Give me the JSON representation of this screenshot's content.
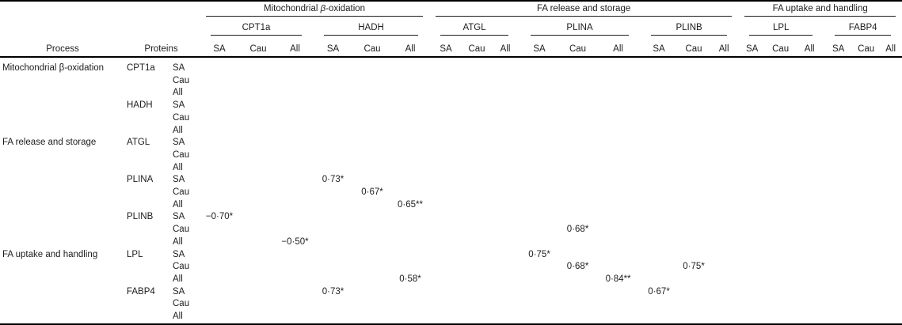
{
  "colors": {
    "background": "#ffffff",
    "text": "#1d1d1d",
    "rule": "#000000"
  },
  "table": {
    "header": {
      "process_label": "Process",
      "proteins_label": "Proteins",
      "subcolumns": [
        "SA",
        "Cau",
        "All"
      ],
      "groups": [
        {
          "label": "Mitochondrial β-oxidation",
          "proteins": [
            "CPT1a",
            "HADH"
          ]
        },
        {
          "label": "FA release and storage",
          "proteins": [
            "ATGL",
            "PLINA",
            "PLINB"
          ]
        },
        {
          "label": "FA uptake and handling",
          "proteins": [
            "LPL",
            "FABP4"
          ]
        }
      ]
    },
    "rows": [
      {
        "process": "Mitochondrial β-oxidation",
        "protein": "CPT1a",
        "group": "SA",
        "cells": {}
      },
      {
        "process": "",
        "protein": "",
        "group": "Cau",
        "cells": {}
      },
      {
        "process": "",
        "protein": "",
        "group": "All",
        "cells": {}
      },
      {
        "process": "",
        "protein": "HADH",
        "group": "SA",
        "cells": {}
      },
      {
        "process": "",
        "protein": "",
        "group": "Cau",
        "cells": {}
      },
      {
        "process": "",
        "protein": "",
        "group": "All",
        "cells": {}
      },
      {
        "process": "FA release and storage",
        "protein": "ATGL",
        "group": "SA",
        "cells": {}
      },
      {
        "process": "",
        "protein": "",
        "group": "Cau",
        "cells": {}
      },
      {
        "process": "",
        "protein": "",
        "group": "All",
        "cells": {}
      },
      {
        "process": "",
        "protein": "PLINA",
        "group": "SA",
        "cells": {
          "HADH-SA": "0·73*"
        }
      },
      {
        "process": "",
        "protein": "",
        "group": "Cau",
        "cells": {
          "HADH-Cau": "0·67*"
        }
      },
      {
        "process": "",
        "protein": "",
        "group": "All",
        "cells": {
          "HADH-All": "0·65**"
        }
      },
      {
        "process": "",
        "protein": "PLINB",
        "group": "SA",
        "cells": {
          "CPT1a-SA": "−0·70*"
        }
      },
      {
        "process": "",
        "protein": "",
        "group": "Cau",
        "cells": {
          "PLINA-Cau": "0·68*"
        }
      },
      {
        "process": "",
        "protein": "",
        "group": "All",
        "cells": {
          "CPT1a-All": "−0·50*"
        }
      },
      {
        "process": "FA uptake and handling",
        "protein": "LPL",
        "group": "SA",
        "cells": {
          "PLINA-SA": "0·75*"
        }
      },
      {
        "process": "",
        "protein": "",
        "group": "Cau",
        "cells": {
          "PLINA-Cau": "0·68*",
          "PLINB-Cau": "0·75*"
        }
      },
      {
        "process": "",
        "protein": "",
        "group": "All",
        "cells": {
          "HADH-All": "0·58*",
          "PLINA-All": "0·84**"
        }
      },
      {
        "process": "",
        "protein": "FABP4",
        "group": "SA",
        "cells": {
          "HADH-SA": "0·73*",
          "PLINB-SA": "0·67*"
        }
      },
      {
        "process": "",
        "protein": "",
        "group": "Cau",
        "cells": {}
      },
      {
        "process": "",
        "protein": "",
        "group": "All",
        "cells": {}
      }
    ]
  }
}
